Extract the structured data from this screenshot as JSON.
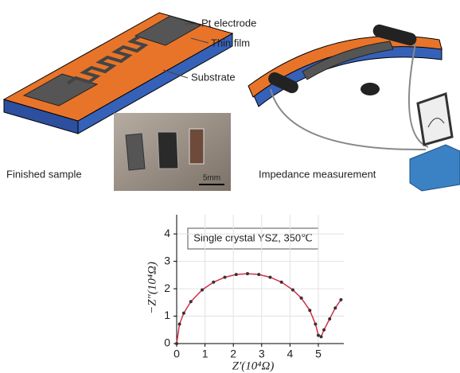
{
  "labels": {
    "pt_electrode": "Pt electrode",
    "thin_film": "Thin film",
    "substrate": "Substrate",
    "finished_sample": "Finished sample",
    "impedance_measurement": "Impedance measurement",
    "scale_bar": "5mm"
  },
  "chart_data": {
    "type": "line",
    "annotation": "Single crystal YSZ, 350℃",
    "x_label": "Z′(10⁴Ω)",
    "y_label": "−Z″(10⁴Ω)",
    "x": [
      0,
      0.1,
      0.25,
      0.5,
      0.9,
      1.3,
      1.7,
      2.1,
      2.5,
      2.9,
      3.3,
      3.7,
      4.1,
      4.4,
      4.7,
      4.9,
      5.0,
      5.1,
      5.2,
      5.4,
      5.6,
      5.8
    ],
    "values": [
      0,
      0.71,
      1.11,
      1.53,
      1.96,
      2.24,
      2.42,
      2.52,
      2.55,
      2.52,
      2.42,
      2.24,
      1.96,
      1.66,
      1.21,
      0.71,
      0.3,
      0.25,
      0.5,
      0.9,
      1.3,
      1.6
    ],
    "color": "#d2304a",
    "marker_color": "#333333",
    "xlim": [
      0,
      5.9
    ],
    "ylim": [
      0,
      4.7
    ],
    "xticks": [
      0,
      1,
      2,
      3,
      4,
      5
    ],
    "yticks": [
      0,
      1,
      2,
      3,
      4
    ],
    "grid": true
  }
}
